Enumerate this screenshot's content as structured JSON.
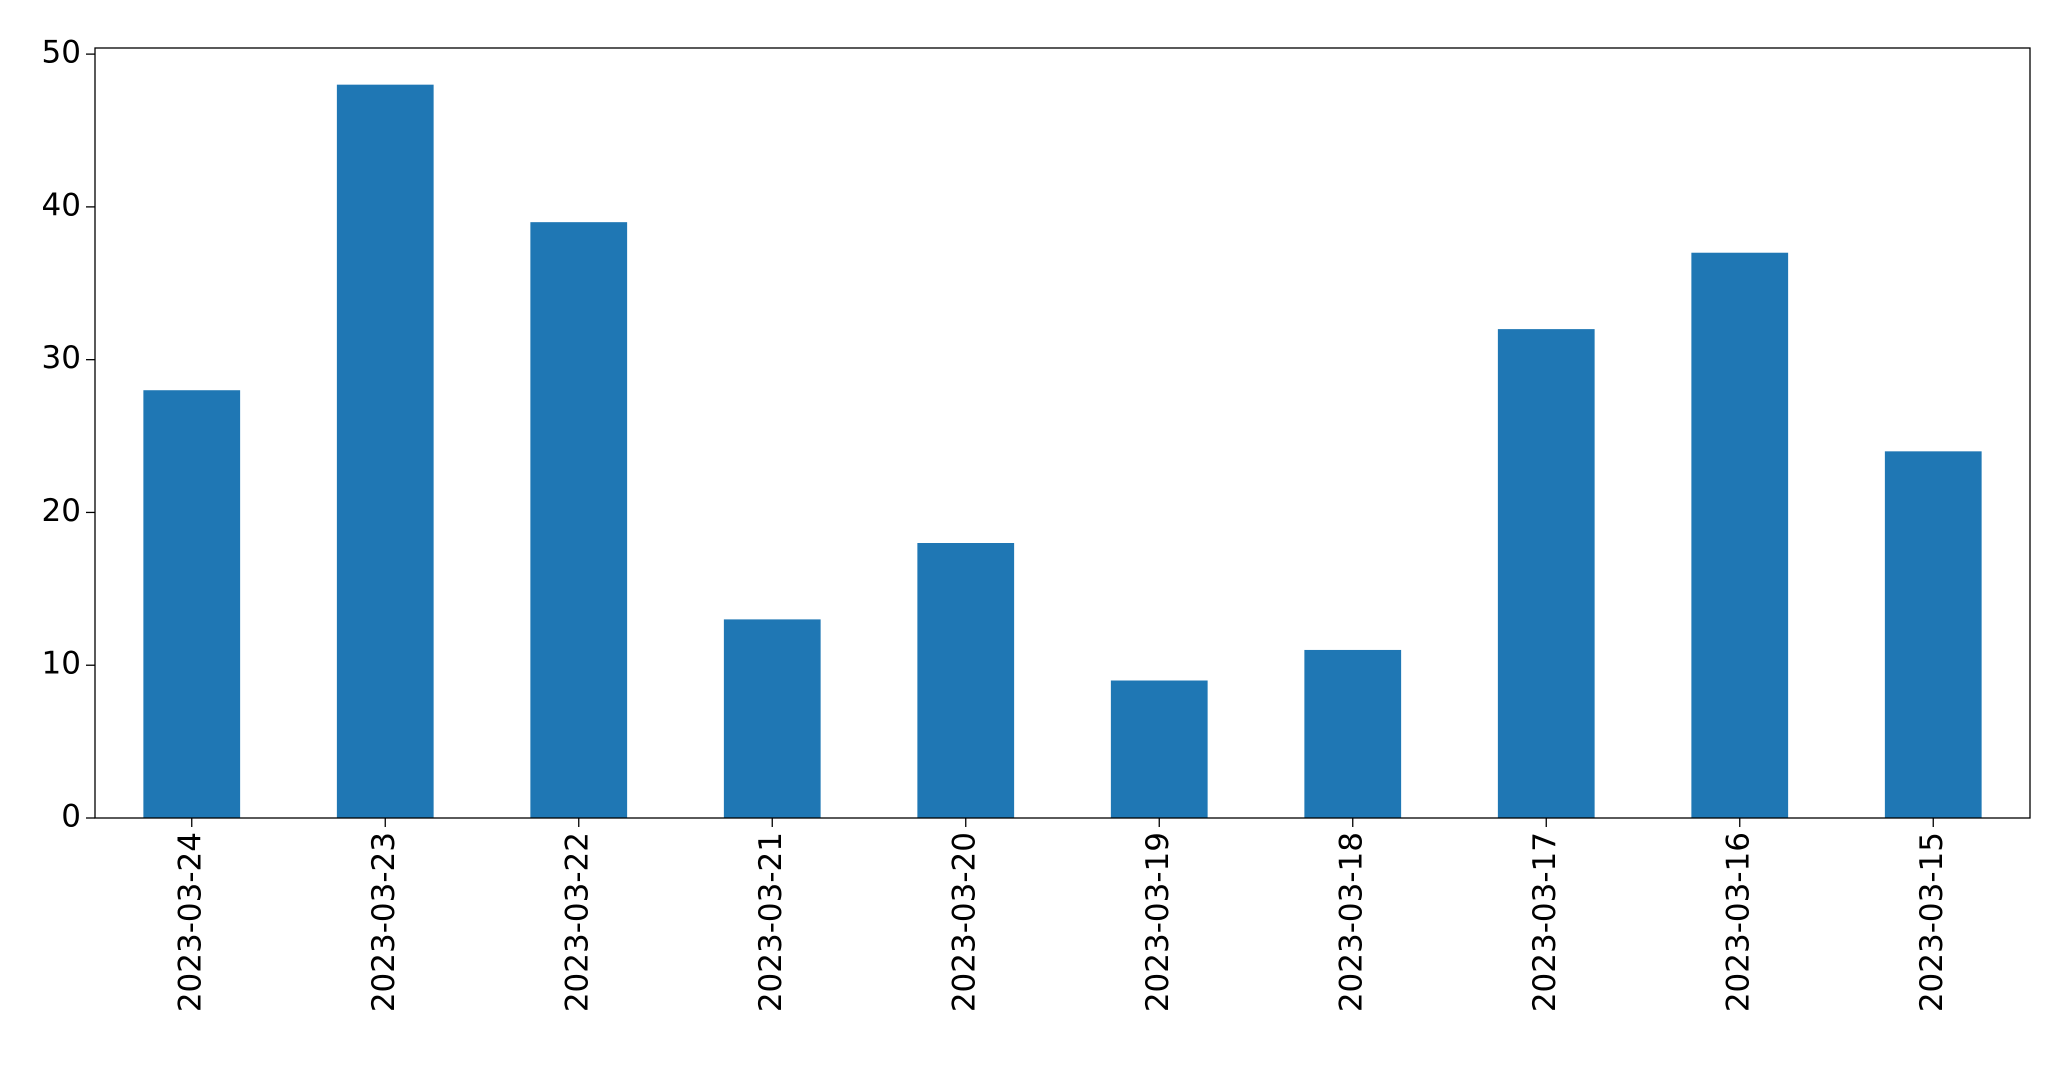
{
  "chart_data": {
    "type": "bar",
    "categories": [
      "2023-03-24",
      "2023-03-23",
      "2023-03-22",
      "2023-03-21",
      "2023-03-20",
      "2023-03-19",
      "2023-03-18",
      "2023-03-17",
      "2023-03-16",
      "2023-03-15"
    ],
    "values": [
      28,
      48,
      39,
      13,
      18,
      9,
      11,
      32,
      37,
      24
    ],
    "color": "#1f77b4",
    "ylim": [
      0,
      50.4
    ],
    "yticks": [
      0,
      10,
      20,
      30,
      40,
      50
    ],
    "grid": false
  }
}
